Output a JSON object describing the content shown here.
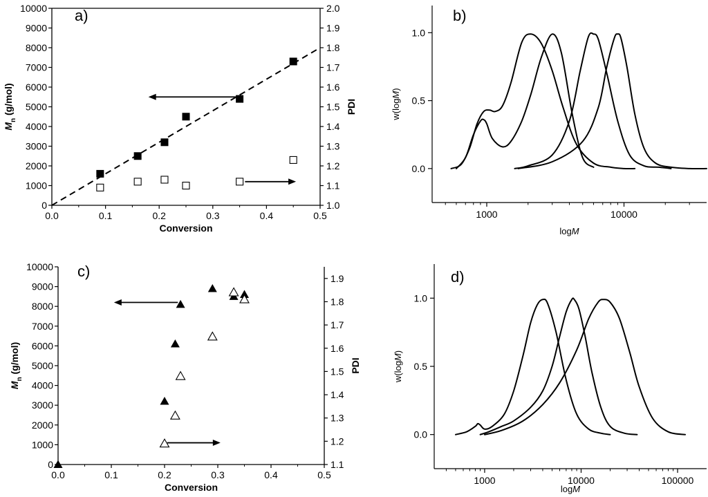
{
  "chart_data": [
    {
      "panel": "a)",
      "type": "scatter",
      "xlabel": "Conversion",
      "ylabel_left": "M",
      "ylabel_left_sub": "n",
      "ylabel_left_unit": " (g/mol)",
      "ylabel_right": "PDI",
      "xlim": [
        0.0,
        0.5
      ],
      "ylim_left": [
        0,
        10000
      ],
      "ylim_right": [
        1.0,
        2.0
      ],
      "x_ticks": [
        "0.0",
        "0.1",
        "0.2",
        "0.3",
        "0.4",
        "0.5"
      ],
      "y_ticks_left": [
        "0",
        "1000",
        "2000",
        "3000",
        "4000",
        "5000",
        "6000",
        "7000",
        "8000",
        "9000",
        "10000"
      ],
      "y_ticks_right": [
        "1.0",
        "1.1",
        "1.2",
        "1.3",
        "1.4",
        "1.5",
        "1.6",
        "1.7",
        "1.8",
        "1.9",
        "2.0"
      ],
      "series": [
        {
          "axis": "left",
          "marker": "filled-square",
          "x": [
            0.09,
            0.16,
            0.21,
            0.25,
            0.35,
            0.45
          ],
          "y": [
            1600,
            2500,
            3200,
            4500,
            5400,
            7300
          ]
        },
        {
          "axis": "right",
          "marker": "open-square",
          "x": [
            0.09,
            0.16,
            0.21,
            0.25,
            0.35,
            0.45
          ],
          "y": [
            1.09,
            1.12,
            1.13,
            1.1,
            1.12,
            1.23
          ]
        }
      ],
      "fit_line": {
        "axis": "left",
        "style": "dashed",
        "x": [
          0.0,
          0.5
        ],
        "y": [
          0,
          8000
        ]
      },
      "arrows": [
        {
          "direction": "left",
          "axis": "left",
          "x_from": 0.35,
          "x_to": 0.18,
          "y": 5500
        },
        {
          "direction": "right",
          "axis": "right",
          "x_from": 0.36,
          "x_to": 0.455,
          "y": 1.12
        }
      ]
    },
    {
      "panel": "b)",
      "type": "line",
      "xlabel": "log",
      "xlabel_italic": "M",
      "ylabel": "w(log",
      "ylabel_italic": "M",
      "ylabel_close": ")",
      "x_scale": "log",
      "xlim": [
        400,
        40000
      ],
      "ylim": [
        -0.25,
        1.2
      ],
      "x_ticks": [
        "1000",
        "10000"
      ],
      "x_tick_values": [
        1000,
        10000
      ],
      "y_ticks": [
        "0.0",
        "0.5",
        "1.0"
      ],
      "y_tick_values": [
        0.0,
        0.5,
        1.0
      ],
      "series": [
        {
          "x": [
            600,
            700,
            800,
            900,
            950,
            1000,
            1100,
            1300,
            1500,
            1800,
            2100,
            2500,
            3000,
            3500,
            4200,
            5000,
            6000
          ],
          "y": [
            0.0,
            0.08,
            0.25,
            0.35,
            0.36,
            0.33,
            0.22,
            0.16,
            0.2,
            0.35,
            0.55,
            0.82,
            0.99,
            0.85,
            0.4,
            0.08,
            0.01
          ]
        },
        {
          "x": [
            550,
            650,
            750,
            850,
            950,
            1050,
            1150,
            1300,
            1500,
            1800,
            2100,
            2500,
            3000,
            3600,
            4500,
            6000,
            8000,
            10000,
            12000
          ],
          "y": [
            0.0,
            0.03,
            0.15,
            0.33,
            0.42,
            0.43,
            0.42,
            0.46,
            0.63,
            0.93,
            0.99,
            0.92,
            0.72,
            0.45,
            0.18,
            0.04,
            0.01,
            0.0,
            0.0
          ]
        },
        {
          "x": [
            1600,
            2000,
            3000,
            4000,
            4800,
            5500,
            6000,
            6500,
            7500,
            9000,
            11000,
            14000,
            18000,
            22000
          ],
          "y": [
            0.0,
            0.02,
            0.1,
            0.35,
            0.72,
            0.97,
            0.99,
            0.95,
            0.7,
            0.35,
            0.1,
            0.02,
            0.01,
            0.0
          ]
        },
        {
          "x": [
            1700,
            3000,
            5000,
            6500,
            7500,
            8500,
            9000,
            9500,
            10500,
            12000,
            14000,
            17000,
            22000,
            30000,
            40000
          ],
          "y": [
            0.0,
            0.05,
            0.2,
            0.45,
            0.75,
            0.96,
            0.99,
            0.96,
            0.75,
            0.4,
            0.15,
            0.04,
            0.01,
            0.0,
            0.0
          ]
        }
      ]
    },
    {
      "panel": "c)",
      "type": "scatter",
      "xlabel": "Conversion",
      "ylabel_left": "M",
      "ylabel_left_sub": "n",
      "ylabel_left_unit": " (g/mol)",
      "ylabel_right": "PDI",
      "xlim": [
        0.0,
        0.5
      ],
      "ylim_left": [
        0,
        10000
      ],
      "ylim_right": [
        1.1,
        1.95
      ],
      "x_ticks": [
        "0.0",
        "0.1",
        "0.2",
        "0.3",
        "0.4",
        "0.5"
      ],
      "y_ticks_left": [
        "0",
        "1000",
        "2000",
        "3000",
        "4000",
        "5000",
        "6000",
        "7000",
        "8000",
        "9000",
        "10000"
      ],
      "y_ticks_right": [
        "1.1",
        "1.2",
        "1.3",
        "1.4",
        "1.5",
        "1.6",
        "1.7",
        "1.8",
        "1.9"
      ],
      "y_tick_values_right": [
        1.1,
        1.2,
        1.3,
        1.4,
        1.5,
        1.6,
        1.7,
        1.8,
        1.9
      ],
      "series": [
        {
          "axis": "left",
          "marker": "filled-triangle",
          "x": [
            0.0,
            0.2,
            0.22,
            0.23,
            0.29,
            0.33,
            0.35
          ],
          "y": [
            0,
            3200,
            6100,
            8100,
            8900,
            8500,
            8600
          ]
        },
        {
          "axis": "right",
          "marker": "open-triangle",
          "x": [
            0.2,
            0.22,
            0.23,
            0.29,
            0.33,
            0.35
          ],
          "y": [
            1.19,
            1.31,
            1.48,
            1.65,
            1.84,
            1.81
          ]
        }
      ],
      "arrows": [
        {
          "direction": "left",
          "axis": "left",
          "x_from": 0.225,
          "x_to": 0.105,
          "y": 8200
        },
        {
          "direction": "right",
          "axis": "left",
          "x_from": 0.205,
          "x_to": 0.305,
          "y": 1100
        }
      ]
    },
    {
      "panel": "d)",
      "type": "line",
      "xlabel": "log",
      "xlabel_italic": "M",
      "ylabel": "w(log",
      "ylabel_italic": "M",
      "ylabel_close": ")",
      "x_scale": "log",
      "xlim": [
        300,
        200000
      ],
      "ylim": [
        -0.25,
        1.25
      ],
      "x_ticks": [
        "1000",
        "10000",
        "100000"
      ],
      "x_tick_values": [
        1000,
        10000,
        100000
      ],
      "y_ticks": [
        "0.0",
        "0.5",
        "1.0"
      ],
      "y_tick_values": [
        0.0,
        0.5,
        1.0
      ],
      "series": [
        {
          "x": [
            500,
            650,
            800,
            850,
            900,
            1000,
            1200,
            1600,
            2000,
            2500,
            3000,
            3500,
            4000,
            4500,
            5500,
            7000,
            9000,
            12000,
            16000,
            20000
          ],
          "y": [
            0.0,
            0.02,
            0.06,
            0.08,
            0.07,
            0.04,
            0.06,
            0.15,
            0.32,
            0.58,
            0.82,
            0.95,
            0.99,
            0.96,
            0.75,
            0.4,
            0.15,
            0.04,
            0.01,
            0.0
          ]
        },
        {
          "x": [
            900,
            1100,
            1500,
            2000,
            3000,
            4000,
            5000,
            6000,
            7000,
            8000,
            8500,
            9500,
            11000,
            13000,
            16000,
            20000,
            28000,
            38000
          ],
          "y": [
            0.0,
            0.02,
            0.06,
            0.1,
            0.2,
            0.32,
            0.5,
            0.72,
            0.9,
            0.99,
            0.99,
            0.92,
            0.72,
            0.45,
            0.2,
            0.06,
            0.01,
            0.0
          ]
        },
        {
          "x": [
            1000,
            1500,
            2500,
            4000,
            6000,
            9000,
            12000,
            15000,
            17000,
            20000,
            25000,
            32000,
            40000,
            55000,
            80000,
            120000
          ],
          "y": [
            0.0,
            0.03,
            0.1,
            0.22,
            0.38,
            0.62,
            0.85,
            0.97,
            0.99,
            0.97,
            0.85,
            0.6,
            0.35,
            0.12,
            0.02,
            0.0
          ]
        }
      ]
    }
  ]
}
